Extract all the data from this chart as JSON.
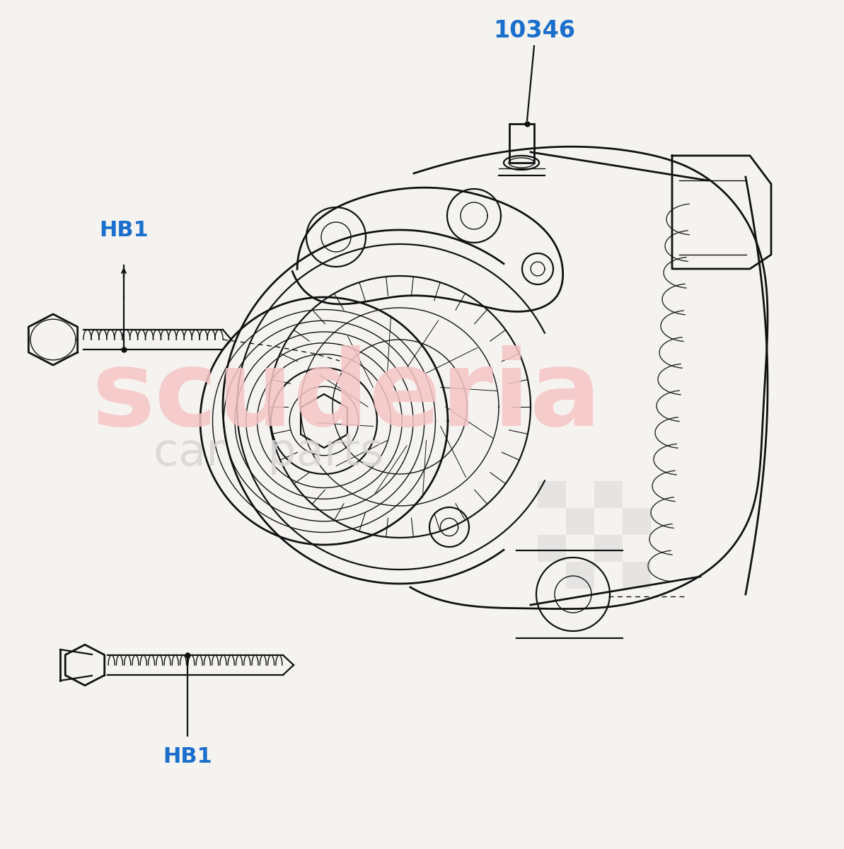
{
  "bg_color": "#f5f3f0",
  "line_color": "#111111",
  "label_color": "#1a6fcc",
  "watermark_color1": "#f5c5c5",
  "watermark_color2": "#d8d5d5",
  "label_10346": "10346",
  "label_HB1": "HB1",
  "lw": 1.6,
  "lw_thick": 2.0,
  "lw_thin": 1.0,
  "figw": 11.93,
  "figh": 12.0,
  "dpi": 100
}
